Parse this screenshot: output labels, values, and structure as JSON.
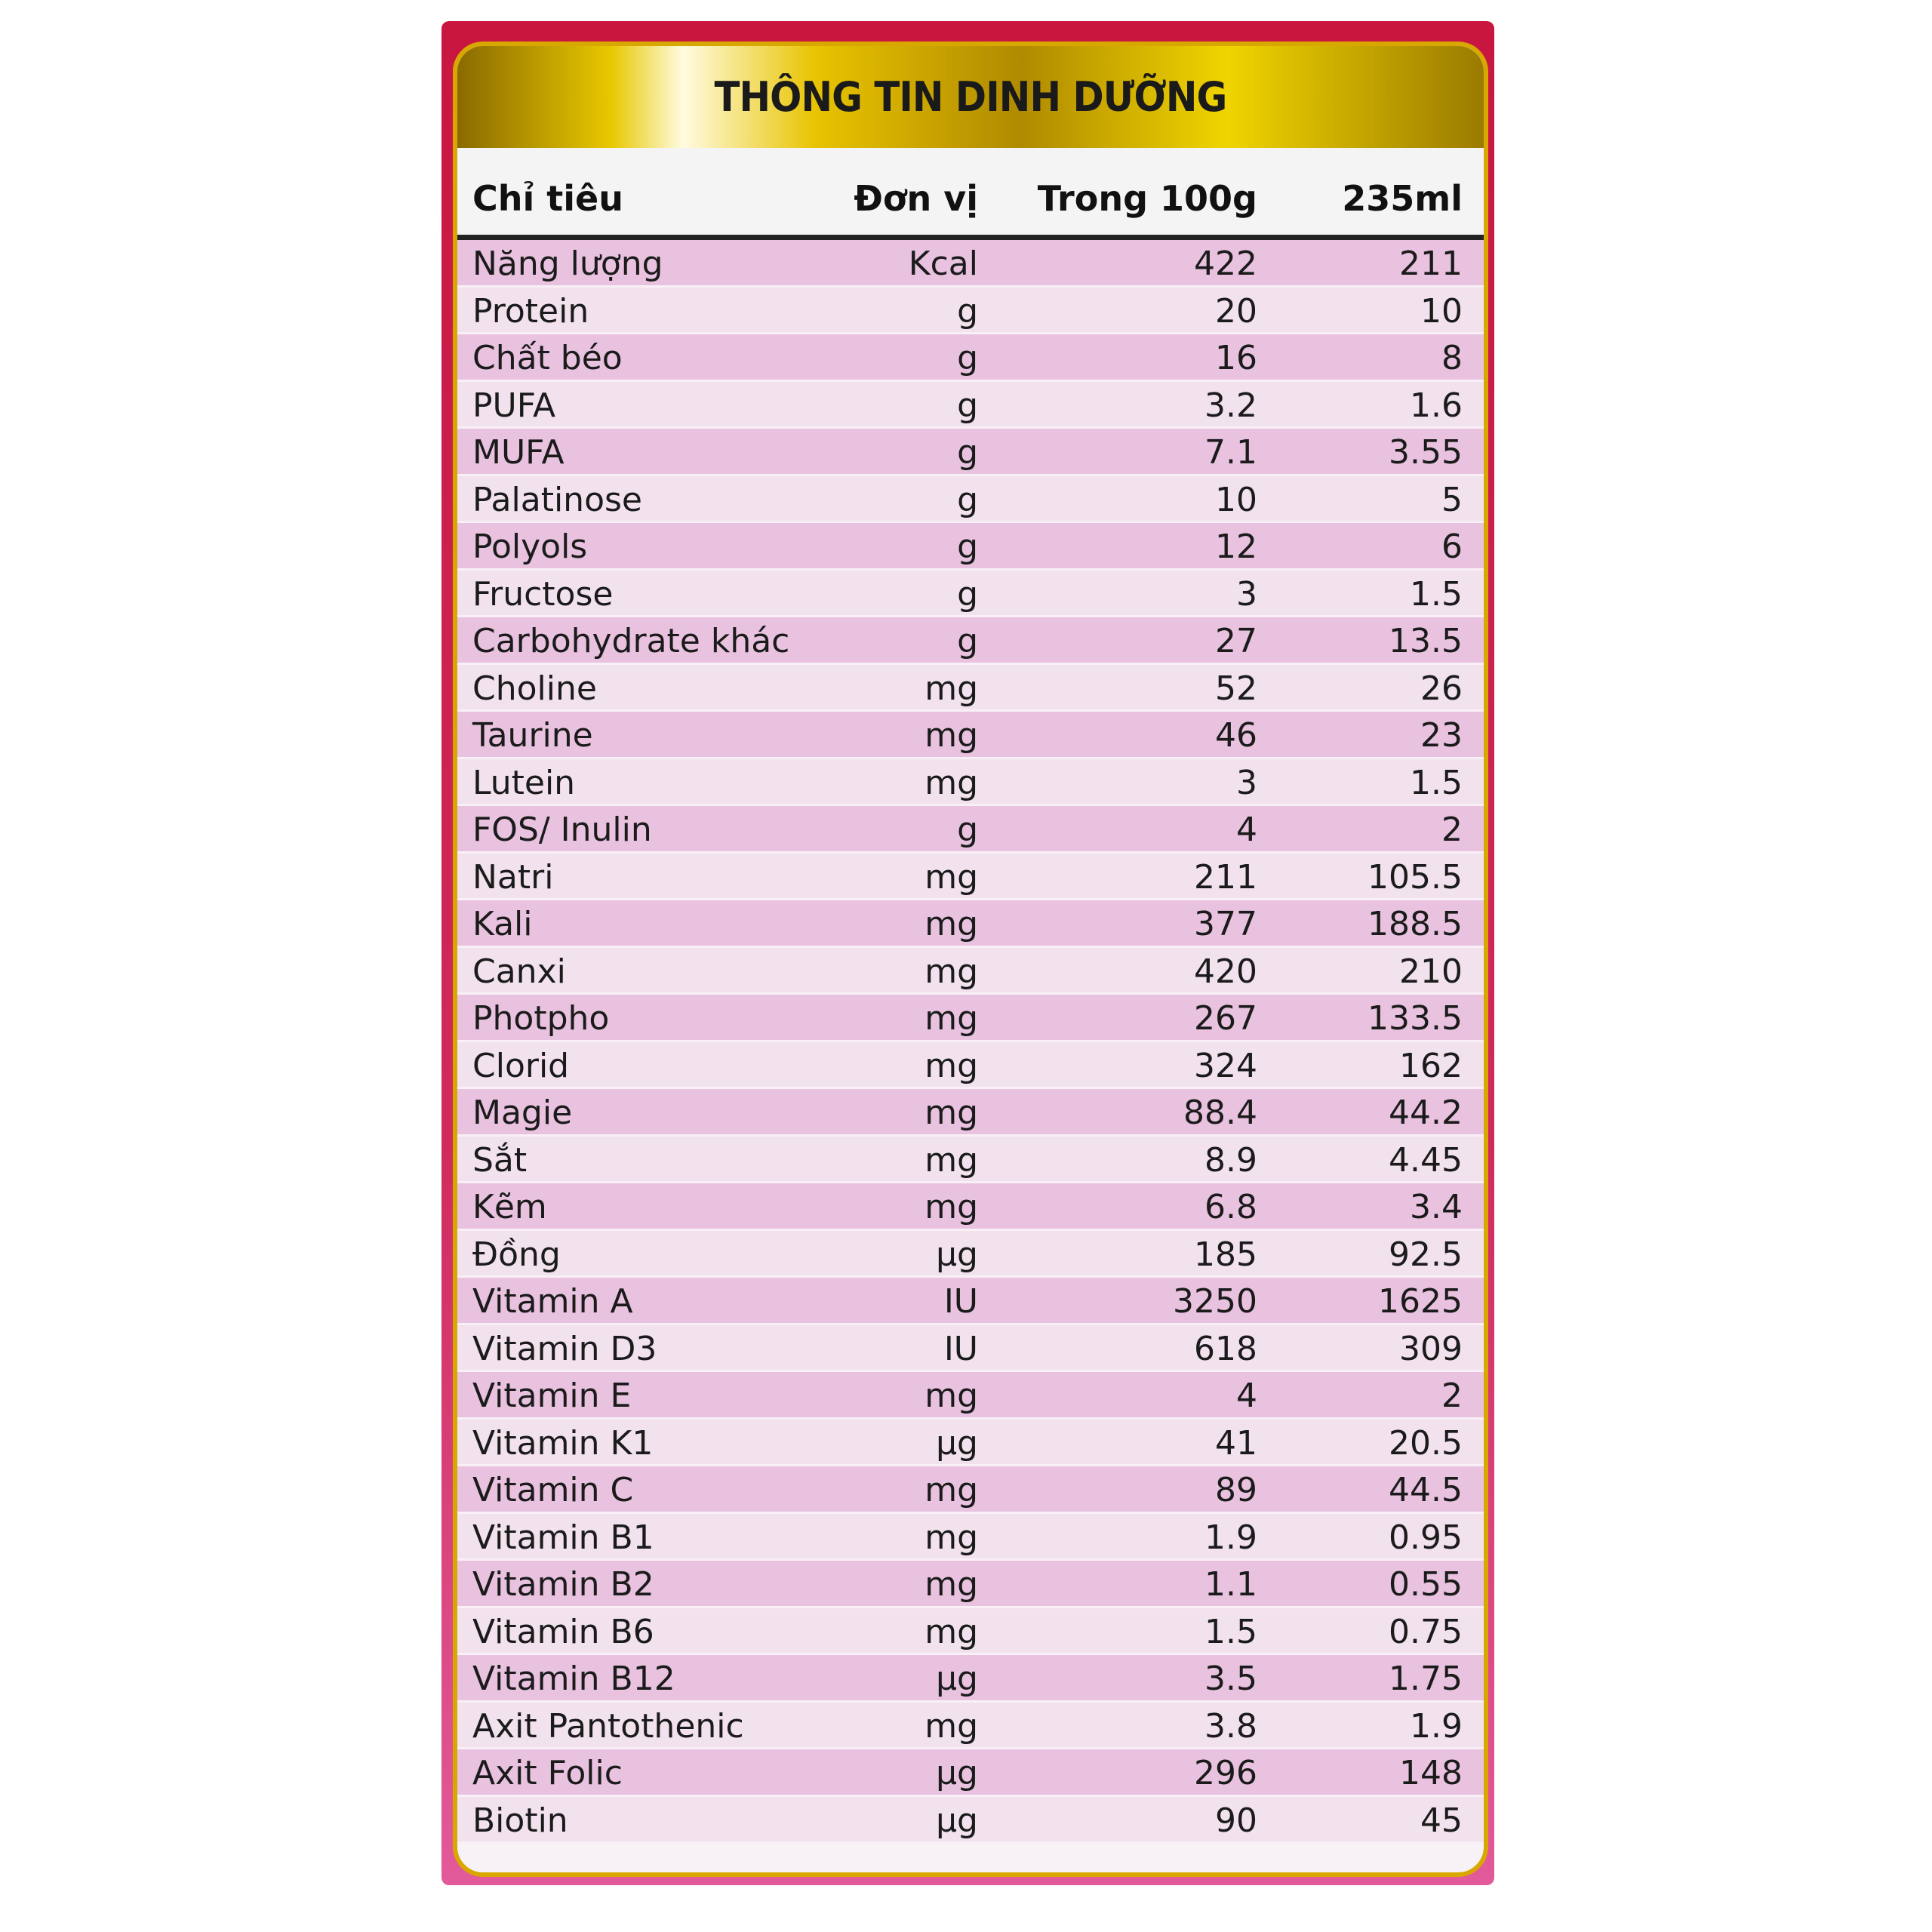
{
  "title": "THÔNG TIN DINH DƯỠNG",
  "columns": {
    "name": "Chỉ tiêu",
    "unit": "Đơn vị",
    "per100g": "Trong 100g",
    "per235ml": "235ml"
  },
  "colors": {
    "border_red": "#c8163f",
    "gold": "#d9a800",
    "row_pink": "#e8c2df",
    "row_light": "#f2e2ee"
  },
  "rows": [
    {
      "name": "Năng lượng",
      "unit": "Kcal",
      "per100g": "422",
      "per235ml": "211"
    },
    {
      "name": "Protein",
      "unit": "g",
      "per100g": "20",
      "per235ml": "10"
    },
    {
      "name": "Chất béo",
      "unit": "g",
      "per100g": "16",
      "per235ml": "8"
    },
    {
      "name": "PUFA",
      "unit": "g",
      "per100g": "3.2",
      "per235ml": "1.6"
    },
    {
      "name": "MUFA",
      "unit": "g",
      "per100g": "7.1",
      "per235ml": "3.55"
    },
    {
      "name": "Palatinose",
      "unit": "g",
      "per100g": "10",
      "per235ml": "5"
    },
    {
      "name": "Polyols",
      "unit": "g",
      "per100g": "12",
      "per235ml": "6"
    },
    {
      "name": "Fructose",
      "unit": "g",
      "per100g": "3",
      "per235ml": "1.5"
    },
    {
      "name": "Carbohydrate khác",
      "unit": "g",
      "per100g": "27",
      "per235ml": "13.5"
    },
    {
      "name": "Choline",
      "unit": "mg",
      "per100g": "52",
      "per235ml": "26"
    },
    {
      "name": "Taurine",
      "unit": "mg",
      "per100g": "46",
      "per235ml": "23"
    },
    {
      "name": "Lutein",
      "unit": "mg",
      "per100g": "3",
      "per235ml": "1.5"
    },
    {
      "name": "FOS/ Inulin",
      "unit": "g",
      "per100g": "4",
      "per235ml": "2"
    },
    {
      "name": "Natri",
      "unit": "mg",
      "per100g": "211",
      "per235ml": "105.5"
    },
    {
      "name": "Kali",
      "unit": "mg",
      "per100g": "377",
      "per235ml": "188.5"
    },
    {
      "name": "Canxi",
      "unit": "mg",
      "per100g": "420",
      "per235ml": "210"
    },
    {
      "name": "Photpho",
      "unit": "mg",
      "per100g": "267",
      "per235ml": "133.5"
    },
    {
      "name": "Clorid",
      "unit": "mg",
      "per100g": "324",
      "per235ml": "162"
    },
    {
      "name": "Magie",
      "unit": "mg",
      "per100g": "88.4",
      "per235ml": "44.2"
    },
    {
      "name": "Sắt",
      "unit": "mg",
      "per100g": "8.9",
      "per235ml": "4.45"
    },
    {
      "name": "Kẽm",
      "unit": "mg",
      "per100g": "6.8",
      "per235ml": "3.4"
    },
    {
      "name": "Đồng",
      "unit": "µg",
      "per100g": "185",
      "per235ml": "92.5"
    },
    {
      "name": "Vitamin A",
      "unit": "IU",
      "per100g": "3250",
      "per235ml": "1625"
    },
    {
      "name": "Vitamin D3",
      "unit": "IU",
      "per100g": "618",
      "per235ml": "309"
    },
    {
      "name": "Vitamin E",
      "unit": "mg",
      "per100g": "4",
      "per235ml": "2"
    },
    {
      "name": "Vitamin K1",
      "unit": "µg",
      "per100g": "41",
      "per235ml": "20.5"
    },
    {
      "name": "Vitamin C",
      "unit": "mg",
      "per100g": "89",
      "per235ml": "44.5"
    },
    {
      "name": "Vitamin B1",
      "unit": "mg",
      "per100g": "1.9",
      "per235ml": "0.95"
    },
    {
      "name": "Vitamin B2",
      "unit": "mg",
      "per100g": "1.1",
      "per235ml": "0.55"
    },
    {
      "name": "Vitamin B6",
      "unit": "mg",
      "per100g": "1.5",
      "per235ml": "0.75"
    },
    {
      "name": "Vitamin B12",
      "unit": "µg",
      "per100g": "3.5",
      "per235ml": "1.75"
    },
    {
      "name": "Axit Pantothenic",
      "unit": "mg",
      "per100g": "3.8",
      "per235ml": "1.9"
    },
    {
      "name": "Axit Folic",
      "unit": "µg",
      "per100g": "296",
      "per235ml": "148"
    },
    {
      "name": "Biotin",
      "unit": "µg",
      "per100g": "90",
      "per235ml": "45"
    }
  ]
}
